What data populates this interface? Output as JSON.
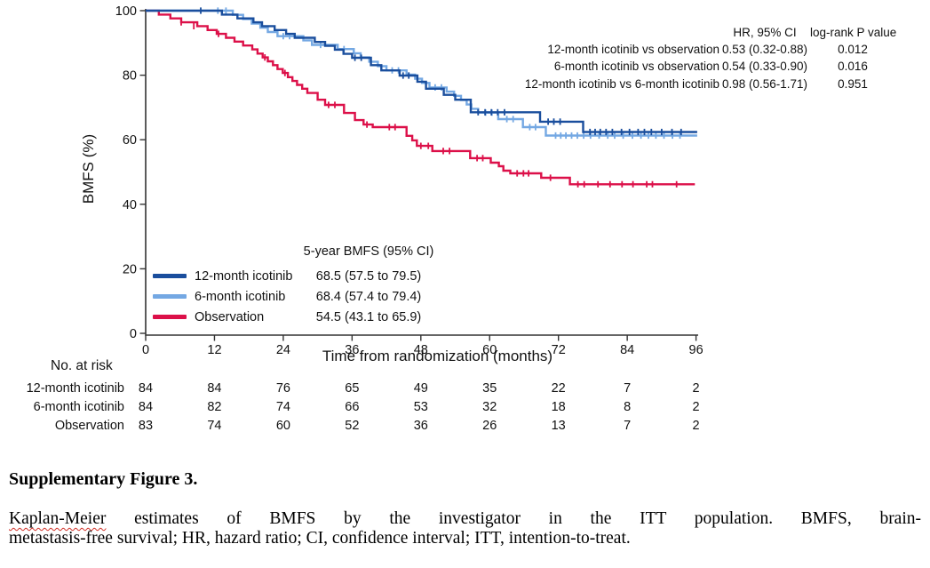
{
  "colors": {
    "axis": "#333333",
    "dark_blue": "#1a4e9d",
    "light_blue": "#74a8e3",
    "red": "#dc1049"
  },
  "chart_data": {
    "type": "line",
    "kind": "kaplan-meier-step",
    "title": "",
    "ylabel": "BMFS (%)",
    "xlabel": "Time from randomization (months)",
    "xlim": [
      0,
      96
    ],
    "ylim": [
      0,
      100
    ],
    "x_ticks": [
      0,
      12,
      24,
      36,
      48,
      60,
      72,
      84,
      96
    ],
    "y_ticks": [
      0,
      20,
      40,
      60,
      80,
      100
    ],
    "grid": false,
    "legend_position": "lower-left-inside",
    "series": [
      {
        "name": "12-month icotinib",
        "color_key": "dark_blue",
        "five_year_bmfs": "68.5 (57.5 to 79.5)",
        "steps": [
          [
            0,
            100
          ],
          [
            13.3,
            98.8
          ],
          [
            16,
            97.6
          ],
          [
            18.8,
            96.4
          ],
          [
            20.3,
            95.2
          ],
          [
            22.5,
            94
          ],
          [
            24.5,
            92.8
          ],
          [
            26,
            91.6
          ],
          [
            29.5,
            90.3
          ],
          [
            31.3,
            89.1
          ],
          [
            33,
            87.9
          ],
          [
            34.5,
            86.6
          ],
          [
            36,
            85.4
          ],
          [
            39.3,
            83.1
          ],
          [
            41.1,
            81.5
          ],
          [
            44.3,
            79.9
          ],
          [
            47.4,
            78
          ],
          [
            48.9,
            75.8
          ],
          [
            52,
            73.9
          ],
          [
            54,
            72.4
          ],
          [
            56.7,
            68.5
          ],
          [
            68.8,
            65.6
          ],
          [
            76.3,
            62.4
          ],
          [
            96.2,
            62.4
          ]
        ],
        "censors": [
          [
            9.6,
            100
          ],
          [
            36.5,
            85.4
          ],
          [
            37.6,
            85.4
          ],
          [
            44.9,
            79.9
          ],
          [
            45.9,
            79.9
          ],
          [
            58,
            68.5
          ],
          [
            59.2,
            68.5
          ],
          [
            60.3,
            68.5
          ],
          [
            61.4,
            68.5
          ],
          [
            62.6,
            68.5
          ],
          [
            70.2,
            65.6
          ],
          [
            71.2,
            65.6
          ],
          [
            72.3,
            65.6
          ],
          [
            77.5,
            62.4
          ],
          [
            78.4,
            62.4
          ],
          [
            79.3,
            62.4
          ],
          [
            80.3,
            62.4
          ],
          [
            81.4,
            62.4
          ],
          [
            83,
            62.4
          ],
          [
            84.4,
            62.4
          ],
          [
            85.9,
            62.4
          ],
          [
            87,
            62.4
          ],
          [
            88.2,
            62.4
          ],
          [
            90,
            62.4
          ],
          [
            91.8,
            62.4
          ],
          [
            93.4,
            62.4
          ]
        ]
      },
      {
        "name": "6-month icotinib",
        "color_key": "light_blue",
        "five_year_bmfs": "68.4 (57.4 to 79.4)",
        "steps": [
          [
            0,
            100
          ],
          [
            15.2,
            98.7
          ],
          [
            17,
            97.4
          ],
          [
            18.5,
            96
          ],
          [
            20,
            94.7
          ],
          [
            21.3,
            93.4
          ],
          [
            23,
            92.1
          ],
          [
            27.5,
            90.8
          ],
          [
            29,
            89.4
          ],
          [
            33.5,
            88.1
          ],
          [
            36.3,
            86.8
          ],
          [
            37.5,
            85.5
          ],
          [
            39,
            84.2
          ],
          [
            40.5,
            82.8
          ],
          [
            42,
            81.5
          ],
          [
            45.5,
            80.2
          ],
          [
            47,
            78.9
          ],
          [
            48.2,
            77.6
          ],
          [
            49.5,
            76.2
          ],
          [
            52.5,
            74.9
          ],
          [
            53.8,
            73.6
          ],
          [
            55,
            72.3
          ],
          [
            56,
            70.9
          ],
          [
            56.8,
            69.6
          ],
          [
            58,
            68.4
          ],
          [
            61.5,
            66.4
          ],
          [
            65.8,
            63.9
          ],
          [
            69.8,
            61.3
          ],
          [
            96.2,
            61.3
          ]
        ],
        "censors": [
          [
            12.6,
            100
          ],
          [
            14,
            100
          ],
          [
            24,
            92.1
          ],
          [
            25.1,
            92.1
          ],
          [
            30.5,
            89.4
          ],
          [
            34.6,
            88.1
          ],
          [
            43,
            81.5
          ],
          [
            44.1,
            81.5
          ],
          [
            50.5,
            76.2
          ],
          [
            51.6,
            76.2
          ],
          [
            59.3,
            68.4
          ],
          [
            60.4,
            68.4
          ],
          [
            63,
            66.4
          ],
          [
            64.1,
            66.4
          ],
          [
            67,
            63.9
          ],
          [
            68,
            63.9
          ],
          [
            71.5,
            61.3
          ],
          [
            72.4,
            61.3
          ],
          [
            73.3,
            61.3
          ],
          [
            74.3,
            61.3
          ],
          [
            75.3,
            61.3
          ],
          [
            76.4,
            61.3
          ],
          [
            77.6,
            61.3
          ],
          [
            79.1,
            61.3
          ],
          [
            80.6,
            61.3
          ],
          [
            81.8,
            61.3
          ],
          [
            83.3,
            61.3
          ],
          [
            84.9,
            61.3
          ],
          [
            86.4,
            61.3
          ],
          [
            87.7,
            61.3
          ],
          [
            89,
            61.3
          ],
          [
            90.4,
            61.3
          ],
          [
            91.9,
            61.3
          ],
          [
            93.2,
            61.3
          ]
        ]
      },
      {
        "name": "Observation",
        "color_key": "red",
        "five_year_bmfs": "54.5 (43.1 to 65.9)",
        "steps": [
          [
            0,
            100
          ],
          [
            2.3,
            98.8
          ],
          [
            4.3,
            97.6
          ],
          [
            6.2,
            96.4
          ],
          [
            9,
            95.2
          ],
          [
            10.8,
            94
          ],
          [
            12.4,
            92.8
          ],
          [
            14,
            91.6
          ],
          [
            15.5,
            90.4
          ],
          [
            17,
            89.2
          ],
          [
            18.6,
            88
          ],
          [
            19.5,
            86.7
          ],
          [
            20.4,
            85.5
          ],
          [
            21.3,
            84.3
          ],
          [
            22.2,
            83.1
          ],
          [
            23,
            81.9
          ],
          [
            23.9,
            80.7
          ],
          [
            24.8,
            79.4
          ],
          [
            25.6,
            78.2
          ],
          [
            26.4,
            77
          ],
          [
            27.3,
            75.8
          ],
          [
            28.2,
            74.5
          ],
          [
            30,
            72.4
          ],
          [
            31.3,
            70.8
          ],
          [
            34.6,
            68.3
          ],
          [
            36.5,
            66.1
          ],
          [
            38,
            64.7
          ],
          [
            39.6,
            63.9
          ],
          [
            45.5,
            61.2
          ],
          [
            46.5,
            59.8
          ],
          [
            47.3,
            58.1
          ],
          [
            50,
            56.5
          ],
          [
            56.6,
            54.3
          ],
          [
            60.2,
            52.9
          ],
          [
            61.6,
            51.8
          ],
          [
            62.4,
            50.4
          ],
          [
            63.6,
            49.6
          ],
          [
            69,
            48.2
          ],
          [
            74,
            46.2
          ],
          [
            95.8,
            46.2
          ]
        ],
        "censors": [
          [
            6.2,
            96.4
          ],
          [
            8.4,
            95.2
          ],
          [
            12.7,
            92.8
          ],
          [
            20.8,
            85.5
          ],
          [
            24.3,
            80.7
          ],
          [
            31.9,
            70.8
          ],
          [
            33,
            70.8
          ],
          [
            38.6,
            64.7
          ],
          [
            42.5,
            63.9
          ],
          [
            43.5,
            63.9
          ],
          [
            48,
            58.1
          ],
          [
            49.3,
            58.1
          ],
          [
            51.9,
            56.5
          ],
          [
            53,
            56.5
          ],
          [
            57.8,
            54.3
          ],
          [
            58.8,
            54.3
          ],
          [
            64.8,
            49.6
          ],
          [
            65.9,
            49.6
          ],
          [
            66.8,
            49.6
          ],
          [
            70.6,
            48.2
          ],
          [
            75.4,
            46.2
          ],
          [
            76.5,
            46.2
          ],
          [
            78.9,
            46.2
          ],
          [
            81,
            46.2
          ],
          [
            83.1,
            46.2
          ],
          [
            85,
            46.2
          ],
          [
            87.4,
            46.2
          ],
          [
            88.4,
            46.2
          ],
          [
            92.6,
            46.2
          ]
        ]
      }
    ]
  },
  "stats_table": {
    "col_headers": [
      "HR, 95% CI",
      "log-rank P value"
    ],
    "rows": [
      {
        "label": "12-month icotinib vs observation",
        "hr": "0.53 (0.32-0.88)",
        "p": "0.012"
      },
      {
        "label": "6-month icotinib vs observation",
        "hr": "0.54 (0.33-0.90)",
        "p": "0.016"
      },
      {
        "label": "12-month icotinib vs 6-month icotinib",
        "hr": "0.98 (0.56-1.71)",
        "p": "0.951"
      }
    ]
  },
  "legend": {
    "header": "5-year BMFS (95% CI)",
    "items": [
      {
        "label": "12-month icotinib",
        "value": "68.5 (57.5 to 79.5)",
        "color_key": "dark_blue"
      },
      {
        "label": "6-month icotinib",
        "value": "68.4 (57.4 to 79.4)",
        "color_key": "light_blue"
      },
      {
        "label": "Observation",
        "value": "54.5 (43.1 to 65.9)",
        "color_key": "red"
      }
    ]
  },
  "risk_table": {
    "title": "No. at risk",
    "rows": [
      {
        "label": "12-month icotinib",
        "counts": [
          84,
          84,
          76,
          65,
          49,
          35,
          22,
          7,
          2
        ]
      },
      {
        "label": "6-month icotinib",
        "counts": [
          84,
          82,
          74,
          66,
          53,
          32,
          18,
          8,
          2
        ]
      },
      {
        "label": "Observation",
        "counts": [
          83,
          74,
          60,
          52,
          36,
          26,
          13,
          7,
          2
        ]
      }
    ]
  },
  "caption": {
    "title": "Supplementary Figure 3.",
    "line1_word": "Kaplan-Meier",
    "line1_rest": " estimates of BMFS by the investigator in the ITT population. BMFS, brain-",
    "line2": "metastasis-free survival; HR, hazard ratio; CI, confidence interval; ITT, intention-to-treat."
  }
}
